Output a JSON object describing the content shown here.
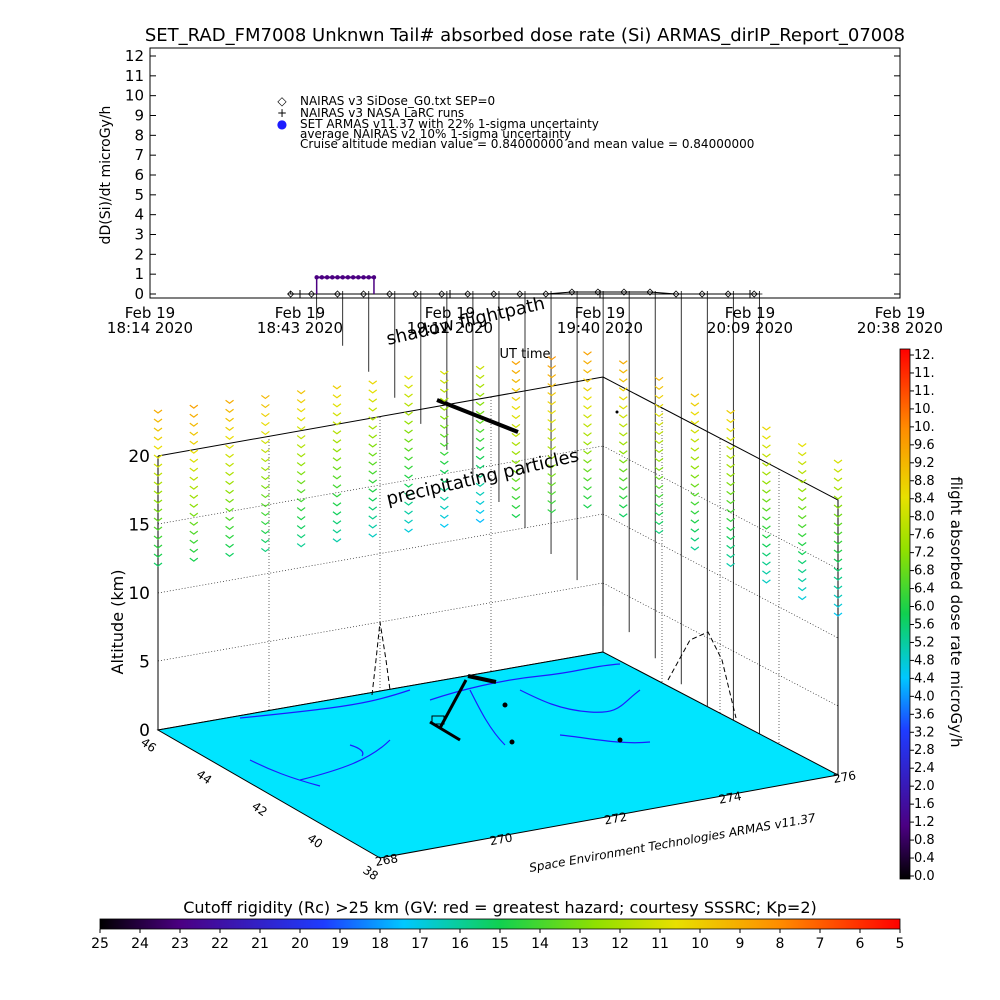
{
  "chart_data": [
    {
      "type": "line",
      "title": "SET_RAD_FM7008  Unknwn Tail#  absorbed dose rate (Si) ARMAS_dirIP_Report_07008",
      "ylabel": "dD(Si)/dt microGy/h",
      "xlabel": "UT time",
      "ylim": [
        0,
        12
      ],
      "y_ticks": [
        "0",
        "1",
        "2",
        "3",
        "4",
        "5",
        "6",
        "7",
        "8",
        "9",
        "10",
        "11",
        "12"
      ],
      "x_ticks": [
        {
          "date": "Feb 19",
          "time": "18:14 2020"
        },
        {
          "date": "Feb 19",
          "time": "18:43 2020"
        },
        {
          "date": "Feb 19",
          "time": "19:12 2020"
        },
        {
          "date": "Feb 19",
          "time": "19:40 2020"
        },
        {
          "date": "Feb 19",
          "time": "20:09 2020"
        },
        {
          "date": "Feb 19",
          "time": "20:38 2020"
        }
      ],
      "legend": [
        {
          "marker": "◇",
          "label": "NAIRAS v3 SiDose_G0.txt SEP=0"
        },
        {
          "marker": "+",
          "label": "NAIRAS v3 NASA LaRC runs"
        },
        {
          "marker": "●",
          "label": "SET ARMAS v11.37 with 22% 1-sigma uncertainty"
        },
        {
          "marker": "",
          "label": "average NAIRAS v2 10% 1-sigma uncertainty"
        },
        {
          "marker": "",
          "label": "Cruise altitude median value = 0.84000000 and mean value = 0.84000000"
        }
      ],
      "series": [
        {
          "name": "NAIRAS v3 SiDose_G0.txt SEP=0",
          "color": "#000000",
          "x": [
            "18:41",
            "18:45",
            "18:50",
            "18:55",
            "19:00",
            "19:05",
            "19:10",
            "19:15",
            "19:20",
            "19:25",
            "19:30",
            "19:35",
            "19:40",
            "19:45",
            "19:50",
            "19:55",
            "20:00",
            "20:05",
            "20:10"
          ],
          "values": [
            0,
            0,
            0,
            0,
            0,
            0,
            0,
            0,
            0,
            0,
            0,
            0.1,
            0.1,
            0.1,
            0.1,
            0,
            0,
            0,
            0
          ]
        },
        {
          "name": "NAIRAS v3 NASA LaRC runs",
          "color": "#000000",
          "x": [
            "18:41",
            "18:46",
            "18:51",
            "18:56",
            "19:01",
            "19:06",
            "19:11",
            "19:16",
            "19:21",
            "19:26",
            "19:31",
            "19:36",
            "19:41",
            "19:46",
            "19:51",
            "19:56",
            "20:01",
            "20:06",
            "20:11"
          ],
          "values": [
            0,
            0,
            0,
            0,
            0,
            0,
            0,
            0,
            0,
            0,
            0,
            0,
            0,
            0,
            0,
            0,
            0,
            0,
            0
          ]
        },
        {
          "name": "SET ARMAS v11.37 with 22% 1-sigma uncertainty",
          "color": "#4b0082",
          "x": [
            "18:46",
            "18:47",
            "18:48",
            "18:49",
            "18:50",
            "18:51",
            "18:52",
            "18:53",
            "18:54",
            "18:55",
            "18:56",
            "18:57"
          ],
          "values": [
            0.84,
            0.84,
            0.84,
            0.84,
            0.84,
            0.84,
            0.84,
            0.84,
            0.84,
            0.84,
            0.84,
            0.84
          ]
        }
      ]
    },
    {
      "type": "scatter",
      "subtype": "3d-flight-map",
      "zlabel": "Altitude (km)",
      "zlim": [
        0,
        20
      ],
      "z_ticks": [
        "0",
        "5",
        "10",
        "15",
        "20"
      ],
      "lat_ticks": [
        "38",
        "40",
        "42",
        "44",
        "46"
      ],
      "lon_ticks": [
        "268",
        "270",
        "272",
        "274",
        "276"
      ],
      "annotations": [
        "shadow flightpath",
        "precipitating particles",
        "Space Environment Technologies ARMAS v11.37"
      ],
      "map_color": "#00e5ff",
      "coast_color": "#1c1cff",
      "particles_altitude_km": 21,
      "particles_dose_microGy_h": [
        {
          "column": 0,
          "dose": 9.6
        },
        {
          "column": 1,
          "dose": 9.8
        },
        {
          "column": 2,
          "dose": 9.6
        },
        {
          "column": 3,
          "dose": 9.4
        },
        {
          "column": 4,
          "dose": 9.2
        },
        {
          "column": 5,
          "dose": 9.0
        },
        {
          "column": 6,
          "dose": 8.8
        },
        {
          "column": 7,
          "dose": 8.6
        },
        {
          "column": 8,
          "dose": 8.4
        },
        {
          "column": 9,
          "dose": 8.2
        },
        {
          "column": 10,
          "dose": 9.8
        },
        {
          "column": 11,
          "dose": 10.0
        },
        {
          "column": 12,
          "dose": 9.8
        },
        {
          "column": 13,
          "dose": 9.6
        },
        {
          "column": 14,
          "dose": 9.4
        },
        {
          "column": 15,
          "dose": 9.2
        },
        {
          "column": 16,
          "dose": 9.0
        },
        {
          "column": 17,
          "dose": 8.8
        },
        {
          "column": 18,
          "dose": 8.6
        },
        {
          "column": 19,
          "dose": 8.4
        }
      ],
      "colorbar": {
        "label": "flight absorbed dose rate microGy/h",
        "range": [
          0,
          12
        ],
        "ticks": [
          "12.",
          "11.",
          "11.",
          "10.",
          "10.",
          "9.6",
          "9.2",
          "8.8",
          "8.4",
          "8.0",
          "7.6",
          "7.2",
          "6.8",
          "6.4",
          "6.0",
          "5.6",
          "5.2",
          "4.8",
          "4.4",
          "4.0",
          "3.6",
          "3.2",
          "2.8",
          "2.4",
          "2.0",
          "1.6",
          "1.2",
          "0.8",
          "0.4",
          "0.0"
        ]
      },
      "cutoff_bar": {
        "label": "Cutoff rigidity (Rc) >25 km (GV: red = greatest hazard; courtesy SSSRC; Kp=2)",
        "ticks": [
          "25",
          "24",
          "23",
          "22",
          "21",
          "20",
          "19",
          "18",
          "17",
          "16",
          "15",
          "14",
          "13",
          "12",
          "11",
          "10",
          "9",
          "8",
          "7",
          "6",
          "5"
        ]
      }
    }
  ]
}
